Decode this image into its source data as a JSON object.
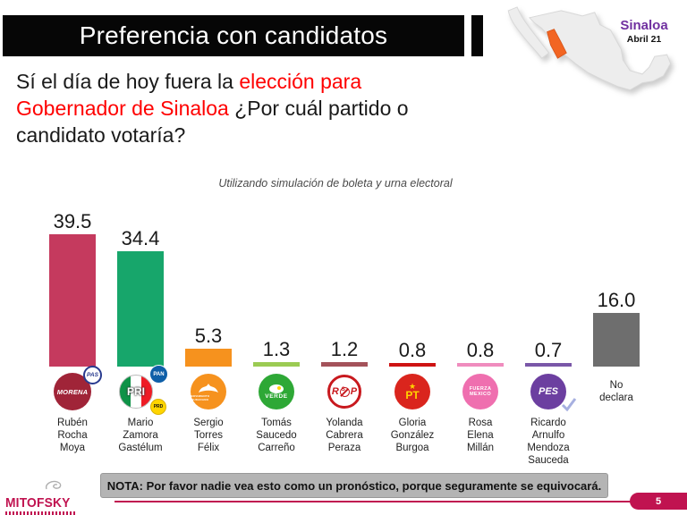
{
  "slide": {
    "title": "Preferencia con candidatos",
    "subtitle": "Utilizando simulación de boleta y urna electoral",
    "note": "NOTA: Por favor nadie vea esto como un pronóstico, porque seguramente se equivocará.",
    "brand": "MITOFSKY",
    "page_number": "5",
    "accent_color": "#C01350"
  },
  "question": {
    "segments": [
      {
        "text": "Sí el día de hoy fuera la ",
        "color": "#1a1a1a"
      },
      {
        "text": "elección para",
        "color": "#FF0000"
      },
      {
        "br": true
      },
      {
        "text": "Gobernador de Sinaloa",
        "color": "#FF0000"
      },
      {
        "text": "  ¿Por cuál partido o",
        "color": "#1a1a1a"
      },
      {
        "br": true
      },
      {
        "text": "candidato votaría?",
        "color": "#1a1a1a"
      }
    ]
  },
  "map": {
    "region_label": "Sinaloa",
    "date_label": "Abril 21",
    "highlight_color": "#F26522",
    "label_color": "#7030A0",
    "country_fill": "#EDEDED"
  },
  "chart_data": {
    "type": "bar",
    "title": "Preferencia con candidatos",
    "subtitle": "Utilizando simulación de boleta y urna electoral",
    "unit": "percent",
    "ylim": [
      0,
      45
    ],
    "grid": false,
    "categories": [
      "Rubén Rocha Moya",
      "Mario Zamora Gastélum",
      "Sergio Torres Félix",
      "Tomás Saucedo Carreño",
      "Yolanda Cabrera Peraza",
      "Gloria González Burgoa",
      "Rosa Elena Millán",
      "Ricardo Arnulfo Mendoza Sauceda",
      "No declara"
    ],
    "values": [
      39.5,
      34.4,
      5.3,
      1.3,
      1.2,
      0.8,
      0.8,
      0.7,
      16.0
    ],
    "columns": [
      {
        "label": "39.5",
        "value": 39.5,
        "color": "#C53A5E",
        "logo": "morena-pas",
        "party": "MORENA-PAS",
        "name_lines": [
          "Rubén",
          "Rocha",
          "Moya"
        ]
      },
      {
        "label": "34.4",
        "value": 34.4,
        "color": "#17A66B",
        "logo": "pri-pan-prd",
        "party": "PRI-PAN-PRD",
        "name_lines": [
          "Mario",
          "Zamora",
          "Gastélum"
        ]
      },
      {
        "label": "5.3",
        "value": 5.3,
        "color": "#F6921E",
        "logo": "mc",
        "party": "Movimiento Ciudadano",
        "name_lines": [
          "Sergio",
          "Torres",
          "Félix"
        ]
      },
      {
        "label": "1.3",
        "value": 1.3,
        "color": "#9BCB53",
        "logo": "verde",
        "party": "Partido Verde",
        "name_lines": [
          "Tomás",
          "Saucedo",
          "Carreño"
        ]
      },
      {
        "label": "1.2",
        "value": 1.2,
        "color": "#A4525A",
        "logo": "rsp",
        "party": "RSP",
        "name_lines": [
          "Yolanda",
          "Cabrera",
          "Peraza"
        ]
      },
      {
        "label": "0.8",
        "value": 0.8,
        "color": "#CE1212",
        "logo": "pt",
        "party": "PT",
        "name_lines": [
          "Gloria",
          "González",
          "Burgoa"
        ]
      },
      {
        "label": "0.8",
        "value": 0.8,
        "color": "#F08CBE",
        "logo": "fuerza-mexico",
        "party": "Fuerza México",
        "name_lines": [
          "Rosa",
          "Elena",
          "Millán"
        ]
      },
      {
        "label": "0.7",
        "value": 0.7,
        "color": "#7A57A8",
        "logo": "pes",
        "party": "PES",
        "name_lines": [
          "Ricardo",
          "Arnulfo",
          "Mendoza",
          "Sauceda"
        ]
      },
      {
        "label": "16.0",
        "value": 16.0,
        "color": "#6E6E6E",
        "logo": "none",
        "party": "No declara",
        "name_lines": [
          "No",
          "declara"
        ],
        "name_in_logo_row": true
      }
    ],
    "logo_texts": {
      "morena": "MORENA",
      "pas": "PAS",
      "pri": "PRI",
      "pan": "PAN",
      "prd": "PRD",
      "mc": "MOVIMIENTO CIUDADANO",
      "verde": "VERDE",
      "rsp": "RSP",
      "pt": "PT",
      "pt_star": "★",
      "fuerza1": "FUERZA",
      "fuerza2": "MEXICO",
      "pes": "PES"
    }
  }
}
